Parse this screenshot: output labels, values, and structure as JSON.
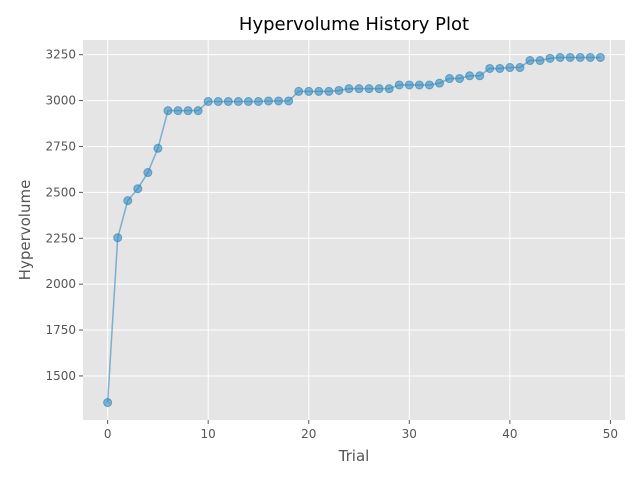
{
  "chart_data": {
    "type": "line",
    "title": "Hypervolume History Plot",
    "xlabel": "Trial",
    "ylabel": "Hypervolume",
    "xlim": [
      -2.45,
      51.45
    ],
    "ylim": [
      1260,
      3330
    ],
    "xticks": [
      0,
      10,
      20,
      30,
      40,
      50
    ],
    "yticks": [
      1500,
      1750,
      2000,
      2250,
      2500,
      2750,
      3000,
      3250
    ],
    "grid": true,
    "background": "#e5e5e5",
    "series": [
      {
        "color": "#348abd",
        "x": [
          0,
          1,
          2,
          3,
          4,
          5,
          6,
          7,
          8,
          9,
          10,
          11,
          12,
          13,
          14,
          15,
          16,
          17,
          18,
          19,
          20,
          21,
          22,
          23,
          24,
          25,
          26,
          27,
          28,
          29,
          30,
          31,
          32,
          33,
          34,
          35,
          36,
          37,
          38,
          39,
          40,
          41,
          42,
          43,
          44,
          45,
          46,
          47,
          48,
          49
        ],
        "y": [
          1355,
          2253,
          2455,
          2520,
          2608,
          2740,
          2945,
          2945,
          2945,
          2945,
          2995,
          2995,
          2995,
          2995,
          2995,
          2995,
          2998,
          2998,
          2998,
          3050,
          3050,
          3050,
          3050,
          3055,
          3065,
          3065,
          3065,
          3065,
          3065,
          3085,
          3085,
          3085,
          3085,
          3095,
          3120,
          3120,
          3135,
          3135,
          3175,
          3175,
          3180,
          3180,
          3218,
          3218,
          3230,
          3235,
          3235,
          3235,
          3235,
          3235
        ]
      }
    ]
  }
}
